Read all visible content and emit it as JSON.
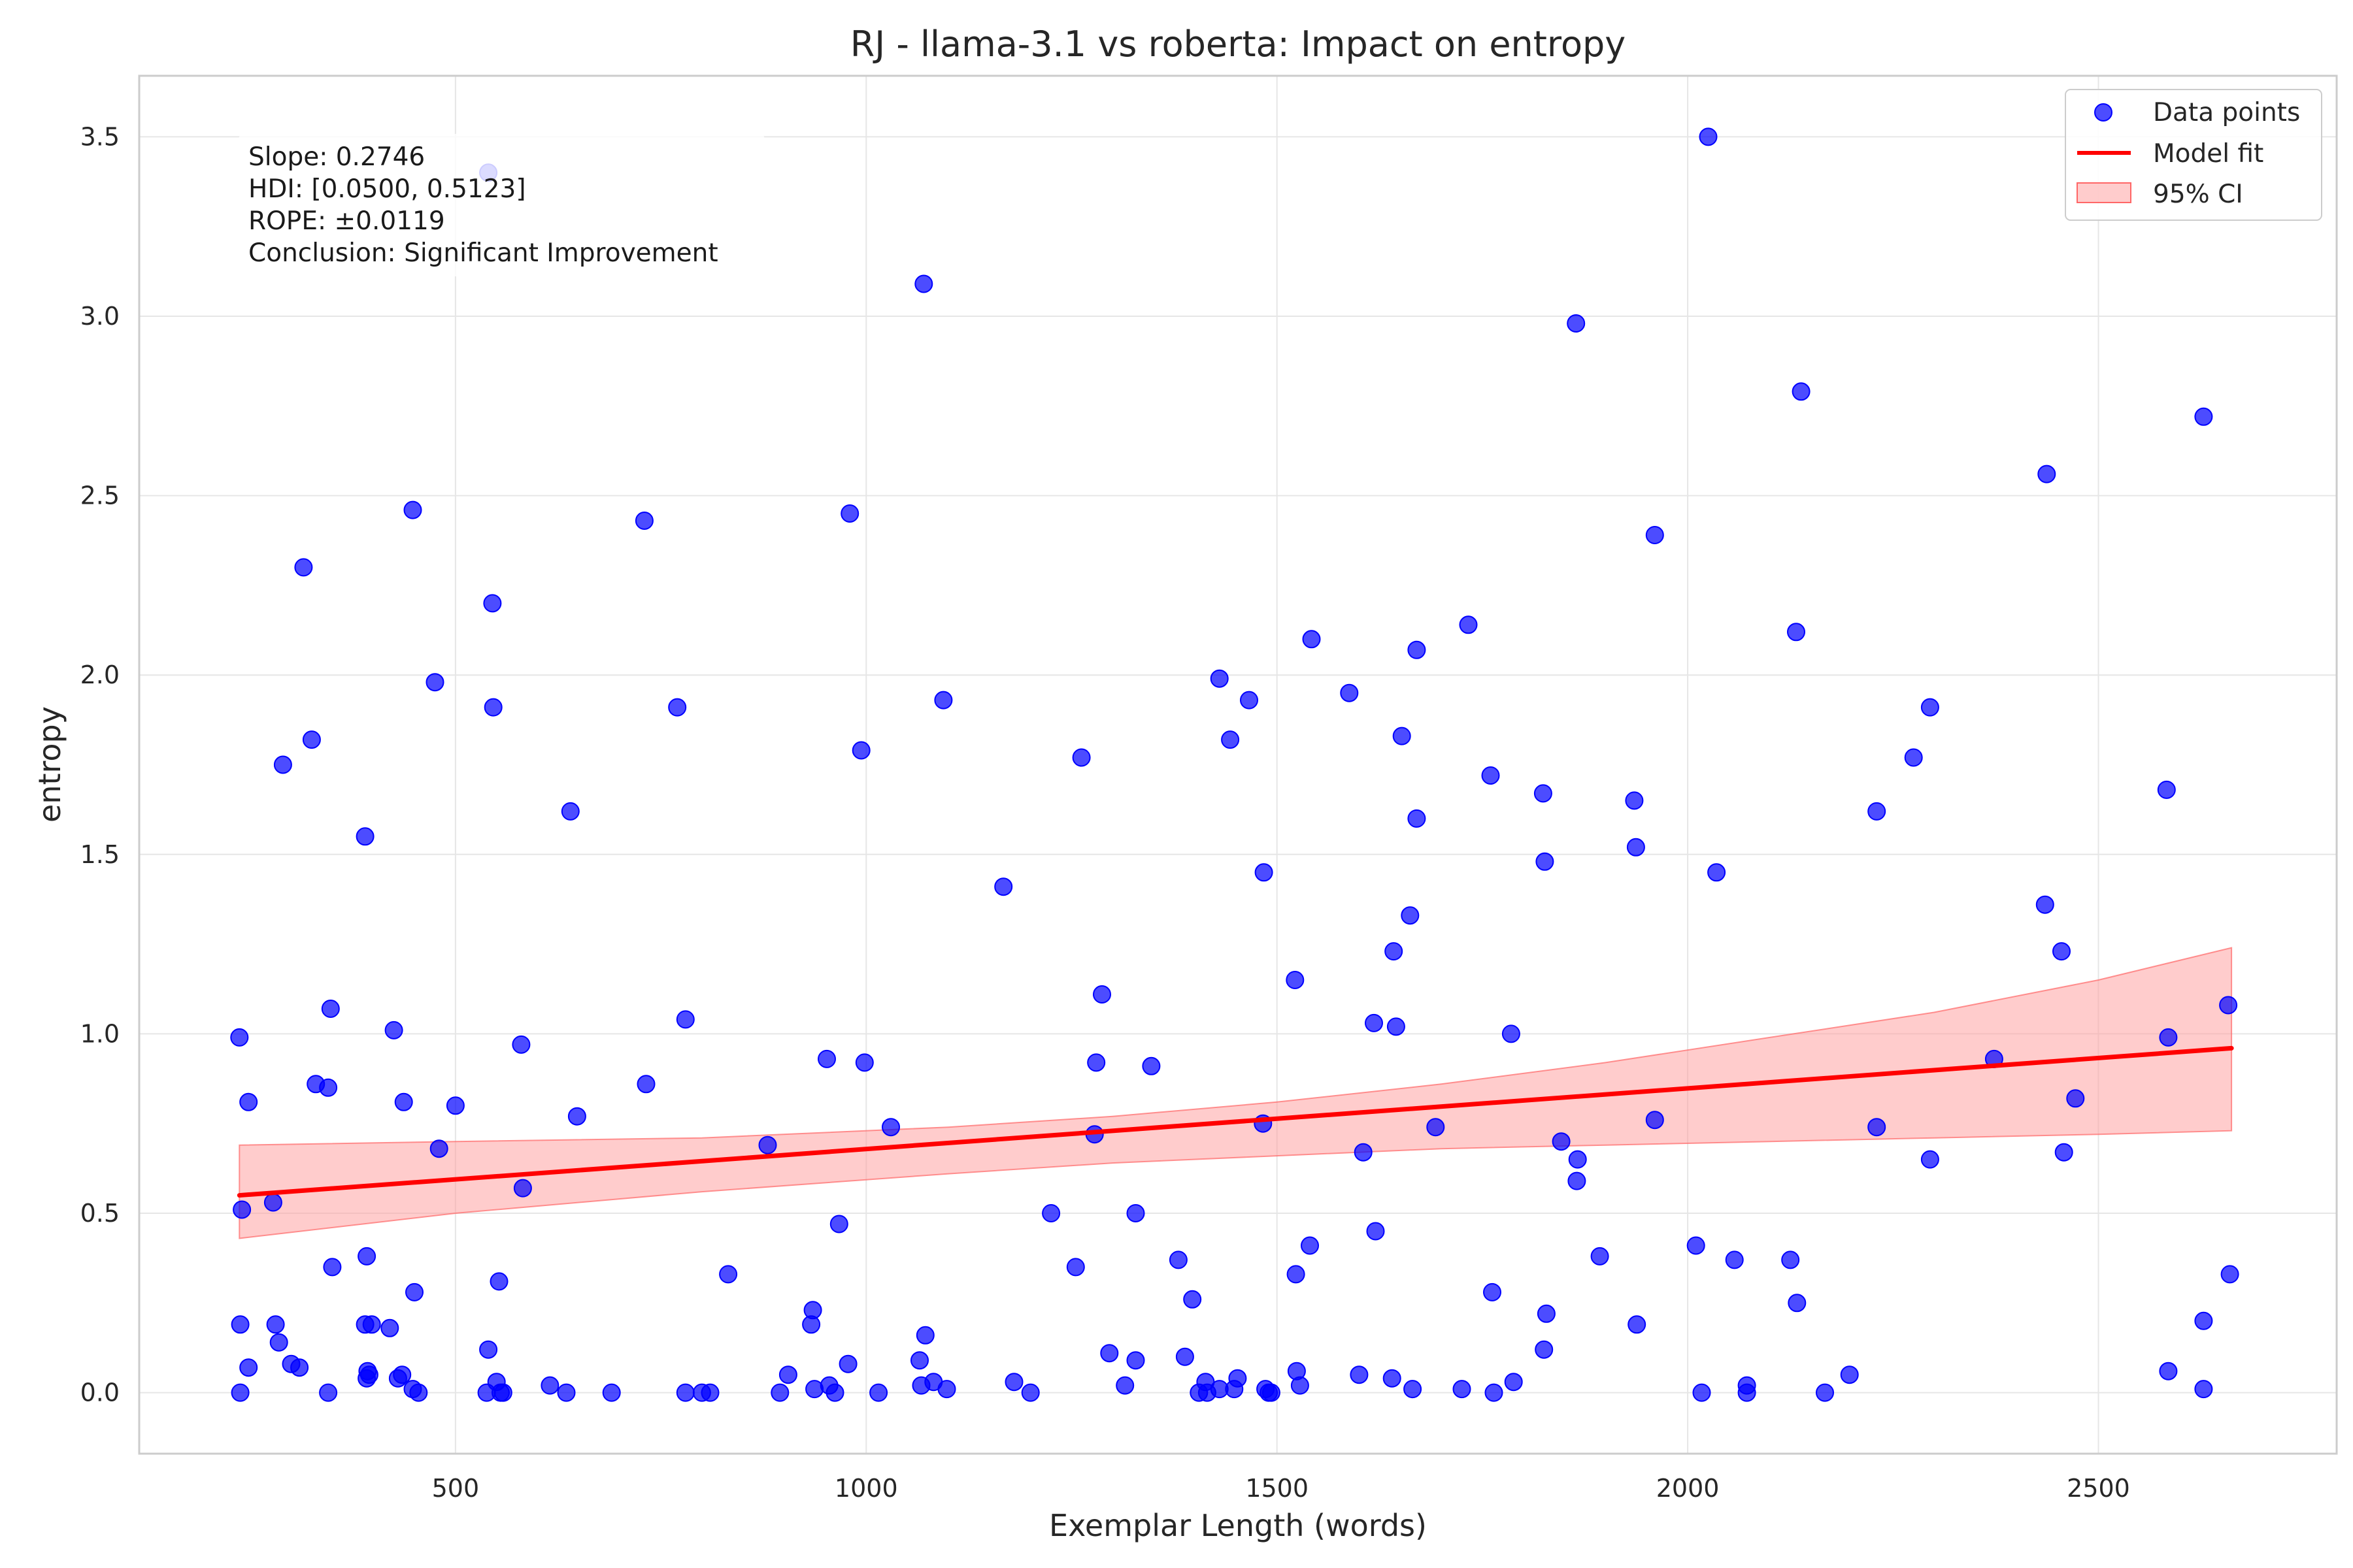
{
  "chart_data": {
    "type": "scatter",
    "title": "RJ - llama-3.1 vs roberta: Impact on entropy",
    "xlabel": "Exemplar Length (words)",
    "ylabel": "entropy",
    "xlim": [
      115,
      2790
    ],
    "ylim": [
      -0.17,
      3.67
    ],
    "x_ticks": [
      500,
      1000,
      1500,
      2000,
      2500
    ],
    "y_ticks": [
      0.0,
      0.5,
      1.0,
      1.5,
      2.0,
      2.5,
      3.0,
      3.5
    ],
    "x_tick_labels": [
      "500",
      "1000",
      "1500",
      "2000",
      "2500"
    ],
    "y_tick_labels": [
      "0.0",
      "0.5",
      "1.0",
      "1.5",
      "2.0",
      "2.5",
      "3.0",
      "3.5"
    ],
    "grid": true,
    "legend_position": "top-right",
    "colors": {
      "points": "#0000ff",
      "fit": "#ff0000",
      "ci_fill": "#ff9999",
      "ci_edge": "#ff6666",
      "grid": "#e6e6e6",
      "axes": "#cccccc"
    },
    "legend": [
      {
        "label": "Data points",
        "kind": "marker"
      },
      {
        "label": "Model fit",
        "kind": "line"
      },
      {
        "label": "95% CI",
        "kind": "patch"
      }
    ],
    "annotation": {
      "lines": [
        "Slope: 0.2746",
        "HDI: [0.0500, 0.5123]",
        "ROPE: ±0.0119",
        "Conclusion: Significant Improvement"
      ]
    },
    "fit": {
      "x": [
        237,
        2662
      ],
      "y": [
        0.55,
        0.96
      ]
    },
    "ci": {
      "x": [
        237,
        500,
        800,
        1100,
        1300,
        1500,
        1700,
        1900,
        2100,
        2300,
        2500,
        2662
      ],
      "upper": [
        0.69,
        0.7,
        0.71,
        0.74,
        0.77,
        0.81,
        0.86,
        0.92,
        0.99,
        1.06,
        1.15,
        1.24
      ],
      "lower": [
        0.43,
        0.5,
        0.56,
        0.61,
        0.64,
        0.66,
        0.68,
        0.69,
        0.7,
        0.71,
        0.72,
        0.73
      ]
    },
    "series": [
      {
        "name": "Data points",
        "points": [
          [
            237,
            0.99
          ],
          [
            240,
            0.51
          ],
          [
            248,
            0.81
          ],
          [
            238,
            0.19
          ],
          [
            238,
            0.0
          ],
          [
            248,
            0.07
          ],
          [
            278,
            0.53
          ],
          [
            281,
            0.19
          ],
          [
            285,
            0.14
          ],
          [
            290,
            1.75
          ],
          [
            300,
            0.08
          ],
          [
            310,
            0.07
          ],
          [
            315,
            2.3
          ],
          [
            325,
            1.82
          ],
          [
            330,
            0.86
          ],
          [
            345,
            0.85
          ],
          [
            348,
            1.07
          ],
          [
            350,
            0.35
          ],
          [
            345,
            0.0
          ],
          [
            390,
            1.55
          ],
          [
            392,
            0.38
          ],
          [
            390,
            0.19
          ],
          [
            393,
            0.06
          ],
          [
            395,
            0.05
          ],
          [
            398,
            0.19
          ],
          [
            392,
            0.04
          ],
          [
            420,
            0.18
          ],
          [
            425,
            1.01
          ],
          [
            430,
            0.04
          ],
          [
            435,
            0.05
          ],
          [
            437,
            0.81
          ],
          [
            448,
            2.46
          ],
          [
            450,
            0.28
          ],
          [
            455,
            0.0
          ],
          [
            448,
            0.01
          ],
          [
            475,
            1.98
          ],
          [
            480,
            0.68
          ],
          [
            500,
            0.8
          ],
          [
            538,
            0.0
          ],
          [
            540,
            0.12
          ],
          [
            540,
            3.4
          ],
          [
            545,
            2.2
          ],
          [
            546,
            1.91
          ],
          [
            550,
            0.03
          ],
          [
            553,
            0.31
          ],
          [
            555,
            0.0
          ],
          [
            558,
            0.0
          ],
          [
            580,
            0.97
          ],
          [
            582,
            0.57
          ],
          [
            615,
            0.02
          ],
          [
            640,
            1.62
          ],
          [
            635,
            0.0
          ],
          [
            648,
            0.77
          ],
          [
            690,
            0.0
          ],
          [
            730,
            2.43
          ],
          [
            732,
            0.86
          ],
          [
            770,
            1.91
          ],
          [
            780,
            1.04
          ],
          [
            780,
            0.0
          ],
          [
            800,
            0.0
          ],
          [
            810,
            0.0
          ],
          [
            832,
            0.33
          ],
          [
            880,
            0.69
          ],
          [
            895,
            0.0
          ],
          [
            905,
            0.05
          ],
          [
            933,
            0.19
          ],
          [
            935,
            0.23
          ],
          [
            937,
            0.01
          ],
          [
            952,
            0.93
          ],
          [
            955,
            0.02
          ],
          [
            962,
            0.0
          ],
          [
            967,
            0.47
          ],
          [
            978,
            0.08
          ],
          [
            980,
            2.45
          ],
          [
            994,
            1.79
          ],
          [
            998,
            0.92
          ],
          [
            1015,
            0.0
          ],
          [
            1030,
            0.74
          ],
          [
            1065,
            0.09
          ],
          [
            1067,
            0.02
          ],
          [
            1070,
            3.09
          ],
          [
            1072,
            0.16
          ],
          [
            1082,
            0.03
          ],
          [
            1094,
            1.93
          ],
          [
            1098,
            0.01
          ],
          [
            1167,
            1.41
          ],
          [
            1180,
            0.03
          ],
          [
            1200,
            0.0
          ],
          [
            1225,
            0.5
          ],
          [
            1255,
            0.35
          ],
          [
            1262,
            1.77
          ],
          [
            1278,
            0.72
          ],
          [
            1280,
            0.92
          ],
          [
            1287,
            1.11
          ],
          [
            1296,
            0.11
          ],
          [
            1315,
            0.02
          ],
          [
            1328,
            0.5
          ],
          [
            1328,
            0.09
          ],
          [
            1347,
            0.91
          ],
          [
            1380,
            0.37
          ],
          [
            1388,
            0.1
          ],
          [
            1397,
            0.26
          ],
          [
            1405,
            0.0
          ],
          [
            1413,
            0.03
          ],
          [
            1415,
            0.0
          ],
          [
            1430,
            1.99
          ],
          [
            1430,
            0.01
          ],
          [
            1443,
            1.82
          ],
          [
            1448,
            0.01
          ],
          [
            1452,
            0.04
          ],
          [
            1466,
            1.93
          ],
          [
            1483,
            0.75
          ],
          [
            1484,
            1.45
          ],
          [
            1486,
            0.01
          ],
          [
            1490,
            0.0
          ],
          [
            1493,
            0.0
          ],
          [
            1522,
            1.15
          ],
          [
            1523,
            0.33
          ],
          [
            1524,
            0.06
          ],
          [
            1528,
            0.02
          ],
          [
            1540,
            0.41
          ],
          [
            1542,
            2.1
          ],
          [
            1588,
            1.95
          ],
          [
            1605,
            0.67
          ],
          [
            1600,
            0.05
          ],
          [
            1618,
            1.03
          ],
          [
            1620,
            0.45
          ],
          [
            1640,
            0.04
          ],
          [
            1642,
            1.23
          ],
          [
            1645,
            1.02
          ],
          [
            1652,
            1.83
          ],
          [
            1662,
            1.33
          ],
          [
            1665,
            0.01
          ],
          [
            1670,
            2.07
          ],
          [
            1670,
            1.6
          ],
          [
            1693,
            0.74
          ],
          [
            1725,
            0.01
          ],
          [
            1733,
            2.14
          ],
          [
            1760,
            1.72
          ],
          [
            1762,
            0.28
          ],
          [
            1764,
            0.0
          ],
          [
            1785,
            1.0
          ],
          [
            1788,
            0.03
          ],
          [
            1824,
            1.67
          ],
          [
            1825,
            0.12
          ],
          [
            1826,
            1.48
          ],
          [
            1828,
            0.22
          ],
          [
            1846,
            0.7
          ],
          [
            1864,
            2.98
          ],
          [
            1866,
            0.65
          ],
          [
            1865,
            0.59
          ],
          [
            1893,
            0.38
          ],
          [
            1935,
            1.65
          ],
          [
            1937,
            1.52
          ],
          [
            1938,
            0.19
          ],
          [
            1960,
            2.39
          ],
          [
            1960,
            0.76
          ],
          [
            2010,
            0.41
          ],
          [
            2017,
            0.0
          ],
          [
            2025,
            3.5
          ],
          [
            2035,
            1.45
          ],
          [
            2057,
            0.37
          ],
          [
            2072,
            0.02
          ],
          [
            2072,
            0.0
          ],
          [
            2125,
            0.37
          ],
          [
            2132,
            2.12
          ],
          [
            2133,
            0.25
          ],
          [
            2138,
            2.79
          ],
          [
            2167,
            0.0
          ],
          [
            2197,
            0.05
          ],
          [
            2230,
            1.62
          ],
          [
            2230,
            0.74
          ],
          [
            2275,
            1.77
          ],
          [
            2295,
            1.91
          ],
          [
            2295,
            0.65
          ],
          [
            2373,
            0.93
          ],
          [
            2435,
            1.36
          ],
          [
            2437,
            2.56
          ],
          [
            2455,
            1.23
          ],
          [
            2458,
            0.67
          ],
          [
            2472,
            0.82
          ],
          [
            2583,
            1.68
          ],
          [
            2585,
            0.99
          ],
          [
            2585,
            0.06
          ],
          [
            2628,
            2.72
          ],
          [
            2628,
            0.2
          ],
          [
            2628,
            0.01
          ],
          [
            2658,
            1.08
          ],
          [
            2660,
            0.33
          ]
        ]
      }
    ]
  }
}
